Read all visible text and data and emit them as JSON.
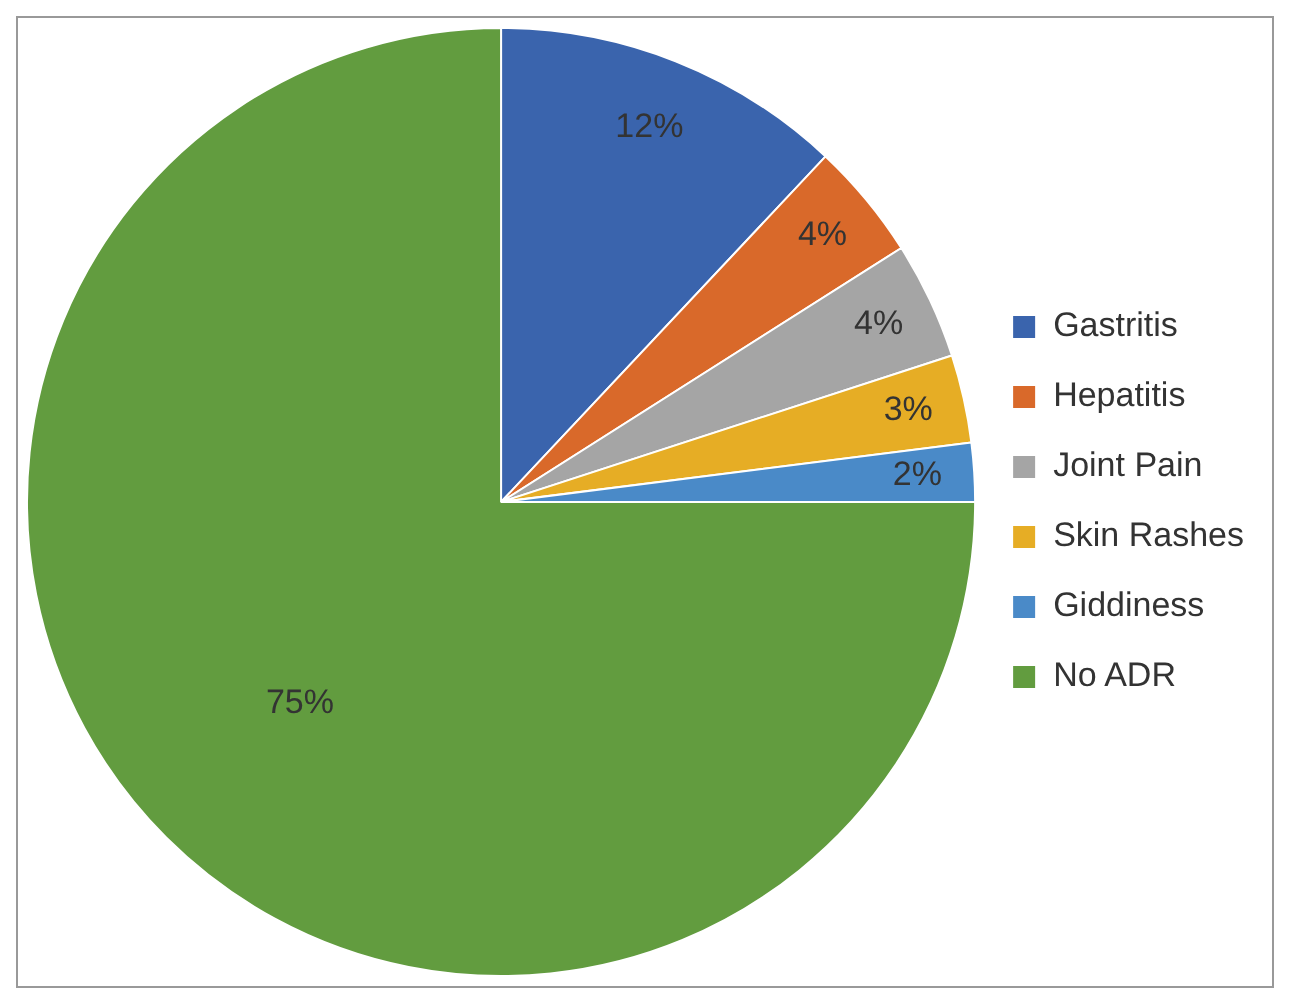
{
  "chart_data": {
    "type": "pie",
    "categories": [
      "Gastritis",
      "Hepatitis",
      "Joint Pain",
      "Skin Rashes",
      "Giddiness",
      "No ADR"
    ],
    "values": [
      12,
      4,
      4,
      3,
      2,
      75
    ],
    "colors": [
      "#3a64ad",
      "#d9692a",
      "#a5a5a5",
      "#e6ad25",
      "#4a8ac8",
      "#629c3f"
    ],
    "value_labels": [
      "12%",
      "4%",
      "4%",
      "3%",
      "2%",
      "75%"
    ],
    "legend": "right"
  }
}
